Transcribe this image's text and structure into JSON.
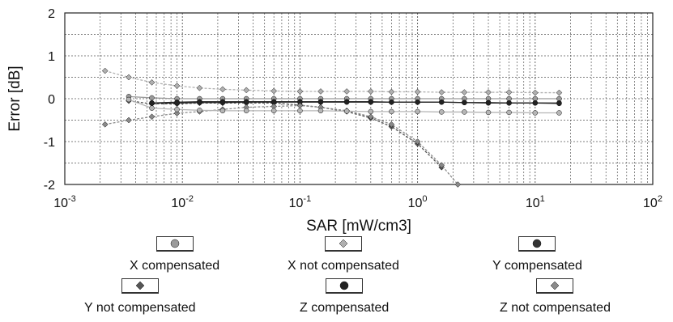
{
  "chart_data": {
    "type": "line",
    "title": "",
    "xlabel": "SAR [mW/cm3]",
    "ylabel": "Error [dB]",
    "x_scale": "log",
    "xlim": [
      0.001,
      100
    ],
    "ylim": [
      -2,
      2
    ],
    "x_ticks": [
      {
        "base": "10",
        "exp": "-3"
      },
      {
        "base": "10",
        "exp": "-2"
      },
      {
        "base": "10",
        "exp": "-1"
      },
      {
        "base": "10",
        "exp": "0"
      },
      {
        "base": "10",
        "exp": "1"
      },
      {
        "base": "10",
        "exp": "2"
      }
    ],
    "y_ticks": [
      "2",
      "1",
      "0",
      "-1",
      "-2"
    ],
    "grid": true,
    "legend_position": "bottom",
    "series": [
      {
        "name": "X compensated",
        "color": "#9a9a9a",
        "marker": "circle",
        "x": [
          0.0035,
          0.0055,
          0.009,
          0.014,
          0.022,
          0.035,
          0.06,
          0.1,
          0.15,
          0.25,
          0.4,
          0.6,
          1.0,
          1.6,
          2.5,
          4,
          6,
          10,
          16
        ],
        "y": [
          0.05,
          0.02,
          0.0,
          0.0,
          0.0,
          0.0,
          0.0,
          0.0,
          0.0,
          0.0,
          0.0,
          0.0,
          0.0,
          0.0,
          0.0,
          0.0,
          0.0,
          0.0,
          0.0
        ]
      },
      {
        "name": "X not compensated",
        "color": "#b0b0b0",
        "marker": "diamond",
        "x": [
          0.0022,
          0.0035,
          0.0055,
          0.009,
          0.014,
          0.022,
          0.035,
          0.06,
          0.1,
          0.15,
          0.25,
          0.4,
          0.6,
          1.0,
          1.6,
          2.5,
          4,
          6,
          10,
          16
        ],
        "y": [
          0.65,
          0.5,
          0.38,
          0.3,
          0.25,
          0.22,
          0.2,
          0.18,
          0.17,
          0.17,
          0.17,
          0.17,
          0.16,
          0.16,
          0.15,
          0.15,
          0.15,
          0.15,
          0.14,
          0.14
        ]
      },
      {
        "name": "Y compensated",
        "color": "#333333",
        "marker": "circle",
        "x": [
          0.0055,
          0.009,
          0.014,
          0.022,
          0.035,
          0.06,
          0.1,
          0.15,
          0.25,
          0.4,
          0.6,
          1.0,
          1.6,
          2.5,
          4,
          6,
          10,
          16
        ],
        "y": [
          -0.1,
          -0.08,
          -0.07,
          -0.07,
          -0.07,
          -0.07,
          -0.07,
          -0.07,
          -0.07,
          -0.07,
          -0.08,
          -0.08,
          -0.08,
          -0.09,
          -0.09,
          -0.1,
          -0.1,
          -0.1
        ]
      },
      {
        "name": "Y not compensated",
        "color": "#555555",
        "marker": "diamond",
        "x": [
          0.0035,
          0.0055,
          0.009,
          0.014,
          0.022,
          0.035,
          0.06,
          0.1,
          0.15,
          0.25,
          0.4,
          0.6,
          1.0,
          1.6
        ],
        "y": [
          -0.05,
          -0.12,
          -0.12,
          -0.1,
          -0.1,
          -0.1,
          -0.1,
          -0.15,
          -0.2,
          -0.3,
          -0.45,
          -0.65,
          -1.05,
          -1.6
        ]
      },
      {
        "name": "Z compensated",
        "color": "#222222",
        "marker": "circle",
        "x": [
          0.0055,
          0.009,
          0.014,
          0.022,
          0.035,
          0.06,
          0.1,
          0.15,
          0.25,
          0.4,
          0.6,
          1.0,
          1.6,
          2.5,
          4,
          6,
          10,
          16
        ],
        "y": [
          -0.1,
          -0.1,
          -0.09,
          -0.09,
          -0.08,
          -0.08,
          -0.08,
          -0.08,
          -0.08,
          -0.08,
          -0.08,
          -0.08,
          -0.08,
          -0.09,
          -0.1,
          -0.1,
          -0.1,
          -0.11
        ]
      },
      {
        "name": "Z not compensated",
        "color": "#8a8a8a",
        "marker": "diamond",
        "x": [
          0.0022,
          0.0035,
          0.0055,
          0.009,
          0.014,
          0.022,
          0.035,
          0.06,
          0.1,
          0.15,
          0.25,
          0.4,
          0.6,
          1.0,
          1.6,
          2.2
        ],
        "y": [
          -0.6,
          -0.5,
          -0.42,
          -0.34,
          -0.3,
          -0.25,
          -0.2,
          -0.18,
          -0.16,
          -0.2,
          -0.28,
          -0.42,
          -0.6,
          -1.0,
          -1.55,
          -2.0
        ]
      },
      {
        "name": "",
        "color": "#b5b5b5",
        "marker": "circle",
        "x": [
          0.0035,
          0.0055,
          0.009,
          0.014,
          0.022,
          0.035,
          0.06,
          0.1,
          0.15,
          0.25,
          0.4,
          0.6,
          1.0,
          1.6,
          2.5,
          4,
          6,
          10,
          16
        ],
        "y": [
          -0.02,
          -0.22,
          -0.25,
          -0.27,
          -0.28,
          -0.28,
          -0.28,
          -0.28,
          -0.28,
          -0.29,
          -0.3,
          -0.3,
          -0.3,
          -0.31,
          -0.31,
          -0.32,
          -0.32,
          -0.33,
          -0.33
        ]
      }
    ]
  },
  "legend": [
    {
      "label": "X compensated",
      "marker": "circle",
      "color": "#9a9a9a"
    },
    {
      "label": "X not compensated",
      "marker": "diamond",
      "color": "#b0b0b0"
    },
    {
      "label": "Y compensated",
      "marker": "circle",
      "color": "#333333"
    },
    {
      "label": "Y not compensated",
      "marker": "diamond",
      "color": "#555555"
    },
    {
      "label": "Z compensated",
      "marker": "circle",
      "color": "#222222"
    },
    {
      "label": "Z not compensated",
      "marker": "diamond",
      "color": "#8a8a8a"
    }
  ]
}
